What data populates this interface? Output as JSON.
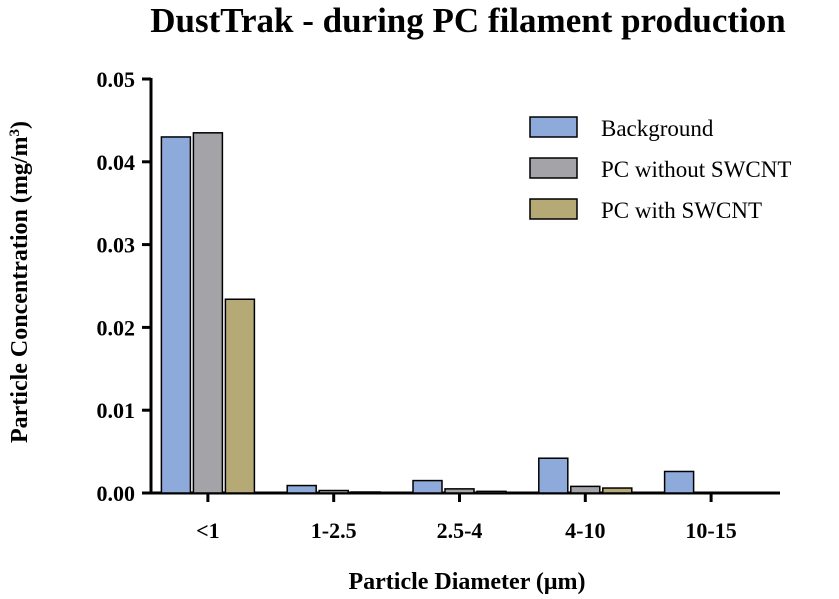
{
  "chart_data": {
    "type": "bar",
    "title": "DustTrak - during PC filament production",
    "xlabel": "Particle Diameter (μm)",
    "ylabel": {
      "main": "Particle Concentration (mg/m",
      "superscript": "3",
      "close": ")"
    },
    "categories": [
      "<1",
      "1-2.5",
      "2.5-4",
      "4-10",
      "10-15"
    ],
    "ylim": [
      0,
      0.05
    ],
    "yticks": [
      "0.00",
      "0.01",
      "0.02",
      "0.03",
      "0.04",
      "0.05"
    ],
    "series": [
      {
        "name": "Background",
        "color": "#8eaadb",
        "values": [
          0.043,
          0.0009,
          0.0015,
          0.0042,
          0.0026
        ]
      },
      {
        "name": "PC without SWCNT",
        "color": "#a3a3a8",
        "values": [
          0.0435,
          0.0003,
          0.0005,
          0.0008,
          0.0
        ]
      },
      {
        "name": "PC with SWCNT",
        "color": "#b5a975",
        "values": [
          0.0234,
          0.0001,
          0.0002,
          0.0006,
          0.0
        ]
      }
    ],
    "legend_position": "top-right",
    "grid": false
  }
}
